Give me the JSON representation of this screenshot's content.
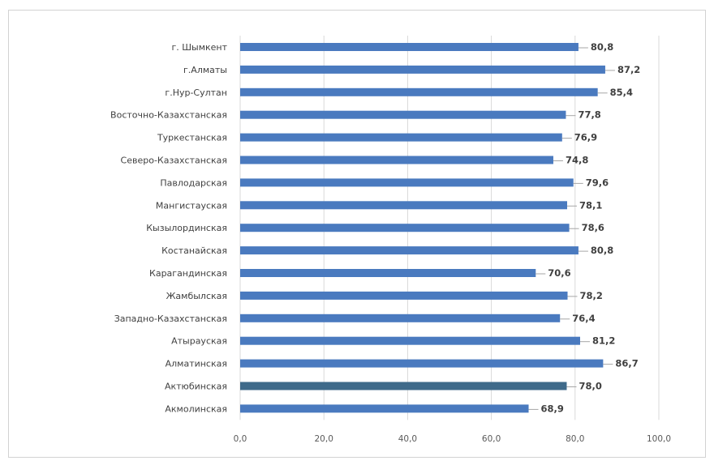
{
  "chart_data": {
    "type": "bar",
    "orientation": "horizontal",
    "title": "",
    "xlabel": "",
    "ylabel": "",
    "categories": [
      "г. Шымкент",
      "г.Алматы",
      "г.Нур-Султан",
      "Восточно-Казахстанская",
      "Туркестанская",
      "Северо-Казахстанская",
      "Павлодарская",
      "Мангистауская",
      "Кызылординская",
      "Костанайская",
      "Карагандинская",
      "Жамбылская",
      "Западно-Казахстанская",
      "Атырауская",
      "Алматинская",
      "Актюбинская",
      "Акмолинская"
    ],
    "values": [
      80.8,
      87.2,
      85.4,
      77.8,
      76.9,
      74.8,
      79.6,
      78.1,
      78.6,
      80.8,
      70.6,
      78.2,
      76.4,
      81.2,
      86.7,
      78.0,
      68.9
    ],
    "value_labels": [
      "80,8",
      "87,2",
      "85,4",
      "77,8",
      "76,9",
      "74,8",
      "79,6",
      "78,1",
      "78,6",
      "80,8",
      "70,6",
      "78,2",
      "76,4",
      "81,2",
      "86,7",
      "78,0",
      "68,9"
    ],
    "xlim": [
      0,
      100
    ],
    "xticks": [
      0,
      20,
      40,
      60,
      80,
      100
    ],
    "xtick_labels": [
      "0,0",
      "20,0",
      "40,0",
      "60,0",
      "80,0",
      "100,0"
    ],
    "grid": true,
    "legend": "none",
    "colors": {
      "bar": "#4a7abf",
      "bar_highlight": "#3f6a8a",
      "grid": "#d9d9d9",
      "text": "#404040"
    }
  }
}
